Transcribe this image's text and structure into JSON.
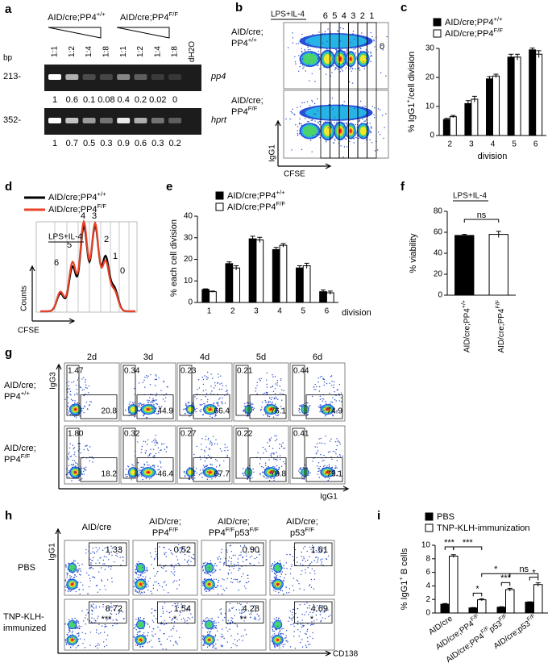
{
  "figure": {
    "a": {
      "letter": "a",
      "genotypes": [
        [
          "AID/cre;PP4",
          {
            "sup": "+/+"
          }
        ],
        [
          "AID/cre;PP4",
          {
            "sup": "F/F"
          }
        ]
      ],
      "lanes": [
        "1:1",
        "1:2",
        "1:4",
        "1:8",
        "1:1",
        "1:2",
        "1:4",
        "1:8",
        "dH2O"
      ],
      "bp_label": "bp",
      "gels": [
        {
          "size": "213-",
          "gene": "pp4",
          "quant": [
            1,
            0.6,
            0.1,
            0.08,
            0.4,
            0.2,
            0.02,
            0
          ]
        },
        {
          "size": "352-",
          "gene": "hprt",
          "quant": [
            1,
            0.7,
            0.5,
            0.3,
            0.9,
            0.6,
            0.3,
            0.2
          ]
        }
      ]
    },
    "b": {
      "letter": "b",
      "condition": "LPS+IL-4",
      "divisions": [
        6,
        5,
        4,
        3,
        2,
        1,
        0
      ],
      "rows": [
        [
          "AID/cre;",
          [
            "PP4",
            {
              "sup": "+/+"
            }
          ]
        ],
        [
          "AID/cre;",
          [
            "PP4",
            {
              "sup": "F/F"
            }
          ]
        ]
      ],
      "y_label": "IgG1",
      "x_label": "CFSE"
    },
    "d": {
      "letter": "d",
      "legend": [
        [
          "AID/cre;PP4",
          {
            "sup": "+/+"
          }
        ],
        [
          "AID/cre;PP4",
          {
            "sup": "F/F"
          }
        ]
      ],
      "colors": [
        "#000000",
        "#e8432a"
      ],
      "condition": "LPS+IL-4",
      "divisions": [
        6,
        5,
        4,
        3,
        2,
        1,
        0
      ],
      "y_label": "Counts",
      "x_label": "CFSE"
    },
    "g": {
      "letter": "g",
      "columns": [
        "2d",
        "3d",
        "4d",
        "5d",
        "6d"
      ],
      "rows": [
        [
          "AID/cre;",
          [
            "PP4",
            {
              "sup": "+/+"
            }
          ]
        ],
        [
          "AID/cre;",
          [
            "PP4",
            {
              "sup": "F/F"
            }
          ]
        ]
      ],
      "gates": [
        {
          "igg3": [
            "1.47",
            "0.34",
            "0.23",
            "0.21",
            "0.44"
          ],
          "igg1": [
            "20.8",
            "44.9",
            "66.4",
            "76.1",
            "74.9"
          ]
        },
        {
          "igg3": [
            "1.80",
            "0.32",
            "0.27",
            "0.22",
            "0.41"
          ],
          "igg1": [
            "18.2",
            "46.4",
            "67.7",
            "78.8",
            "79.1"
          ]
        }
      ],
      "y_label": "IgG3",
      "x_label": "IgG1"
    },
    "h": {
      "letter": "h",
      "columns": [
        [
          "AID/cre"
        ],
        [
          "AID/cre;",
          [
            "PP4",
            {
              "sup": "F/F"
            }
          ]
        ],
        [
          "AID/cre;",
          [
            "PP4",
            {
              "sup": "F/F"
            },
            "p53",
            {
              "sup": "F/F"
            }
          ]
        ],
        [
          "AID/cre;",
          [
            "p53",
            {
              "sup": "F/F"
            }
          ]
        ]
      ],
      "rows": [
        [
          "PBS"
        ],
        [
          "TNP-KLH-",
          "immunized"
        ]
      ],
      "gates": [
        [
          "1.33",
          "0.52",
          "0.90",
          "1.61"
        ],
        [
          "8.72",
          "1.54",
          "4.28",
          "4.69"
        ]
      ],
      "stars": [
        "***",
        "*",
        "**",
        "*"
      ],
      "y_label": "IgG1",
      "x_label": "CD138"
    }
  },
  "chart_data": [
    {
      "type": "bar",
      "letter": "c",
      "categories": [
        2,
        3,
        4,
        5,
        6
      ],
      "series": [
        {
          "name": [
            "AID/cre;PP4",
            {
              "sup": "+/+"
            }
          ],
          "color": "#000000",
          "values": [
            5.5,
            11,
            19.5,
            27,
            29.5
          ],
          "errors": [
            0.4,
            1,
            0.8,
            1,
            0.6
          ]
        },
        {
          "name": [
            "AID/cre;PP4",
            {
              "sup": "F/F"
            }
          ],
          "color": "#ffffff",
          "values": [
            6.5,
            12.5,
            20.5,
            27,
            28
          ],
          "errors": [
            0.4,
            1,
            0.6,
            1,
            1.2
          ]
        }
      ],
      "x_label": "division",
      "y_label": [
        "% IgG1",
        {
          "sup": "+"
        },
        "/cell division"
      ],
      "ylim": [
        0,
        30
      ],
      "yticks": [
        0,
        10,
        20,
        30
      ]
    },
    {
      "type": "bar",
      "letter": "e",
      "categories": [
        1,
        2,
        3,
        4,
        5,
        6
      ],
      "series": [
        {
          "name": [
            "AID/cre;PP4",
            {
              "sup": "+/+"
            }
          ],
          "color": "#000000",
          "values": [
            6,
            18,
            29.5,
            24.5,
            16,
            5
          ],
          "errors": [
            0.3,
            0.8,
            1.2,
            1,
            1,
            0.8
          ]
        },
        {
          "name": [
            "AID/cre;PP4",
            {
              "sup": "F/F"
            }
          ],
          "color": "#ffffff",
          "values": [
            5,
            16,
            29,
            26.5,
            17,
            4.5
          ],
          "errors": [
            0.3,
            1,
            1.2,
            0.8,
            1.2,
            0.8
          ]
        }
      ],
      "x_label": "division",
      "y_label": "% each cell division",
      "ylim": [
        0,
        40
      ],
      "yticks": [
        0,
        10,
        20,
        30,
        40
      ]
    },
    {
      "type": "bar",
      "letter": "f",
      "condition": "LPS+IL-4",
      "categories": [
        [
          "AID/cre;PP4",
          {
            "sup": "+/+"
          }
        ],
        [
          "AID/cre;PP4",
          {
            "sup": "F/F"
          }
        ]
      ],
      "values": [
        57,
        58
      ],
      "errors": [
        1,
        3
      ],
      "colors": [
        "#000000",
        "#ffffff"
      ],
      "y_label": "% viability",
      "ylim": [
        0,
        80
      ],
      "yticks": [
        0,
        20,
        40,
        60,
        80
      ],
      "annotations": [
        {
          "text": "ns"
        }
      ]
    },
    {
      "type": "bar",
      "letter": "i",
      "categories": [
        "AID/cre",
        [
          "AID/cre;PP4",
          {
            "sup": "F/F"
          }
        ],
        [
          "AID/cre;PP4",
          {
            "sup": "F/F"
          },
          "p53",
          {
            "sup": "F/F"
          }
        ],
        [
          "AID/cre;p53",
          {
            "sup": "F/F"
          }
        ]
      ],
      "series": [
        {
          "name": "PBS",
          "color": "#000000",
          "values": [
            1.3,
            0.75,
            0.85,
            1.6
          ],
          "errors": [
            0.1,
            0.05,
            0.08,
            0.05
          ]
        },
        {
          "name": "TNP-KLH-immunization",
          "color": "#ffffff",
          "values": [
            8.4,
            1.95,
            3.45,
            4.2
          ],
          "errors": [
            0.2,
            0.15,
            0.2,
            0.25
          ]
        }
      ],
      "y_label": [
        "% IgG1",
        {
          "sup": "+"
        },
        " B cells"
      ],
      "ylim": [
        0,
        10
      ],
      "yticks": [
        0,
        2,
        4,
        6,
        8,
        10
      ],
      "annotations": [
        {
          "text": "***"
        },
        {
          "text": "***"
        },
        {
          "text": "*"
        },
        {
          "text": "ns"
        },
        {
          "text": "*"
        },
        {
          "text": "***"
        },
        {
          "text": "*"
        }
      ]
    }
  ]
}
